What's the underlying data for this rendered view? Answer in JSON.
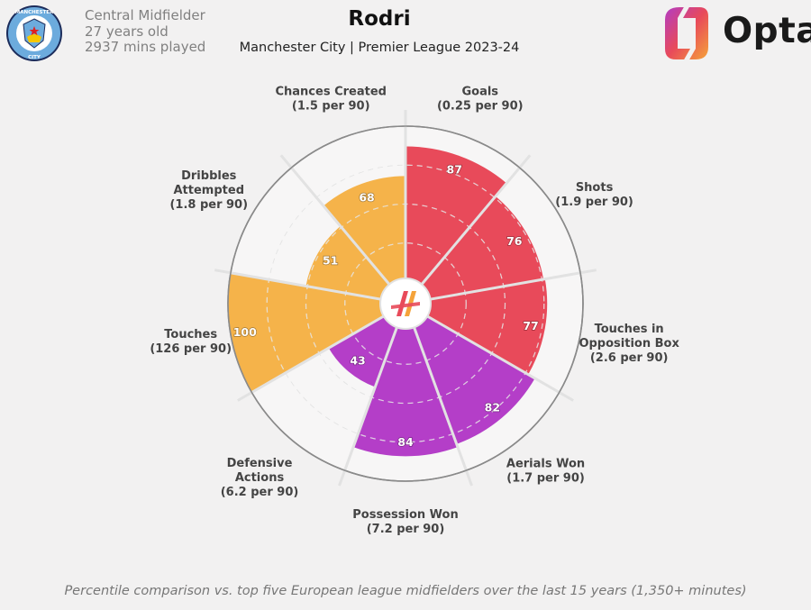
{
  "header": {
    "position": "Central Midfielder",
    "age": "27 years old",
    "minutes": "2937 mins played",
    "title": "Rodri",
    "subtitle": "Manchester City | Premier League 2023-24",
    "logo_text": "Opta",
    "badge_text_top": "MANCHESTER",
    "badge_text_bottom": "CITY"
  },
  "footnote": "Percentile comparison vs. top five European league midfielders over the last 15 years (1,350+ minutes)",
  "colors": {
    "attack": "#e84a5a",
    "possession": "#b43ec8",
    "touch": "#f5b34a",
    "background": "#f2f1f1"
  },
  "chart_data": {
    "type": "pizza",
    "scale_max": 100,
    "metrics": [
      {
        "name": "Goals",
        "per90": "(0.25 per 90)",
        "value": 87,
        "group": "attack"
      },
      {
        "name": "Shots",
        "per90": "(1.9 per 90)",
        "value": 76,
        "group": "attack"
      },
      {
        "name": "Touches in Opposition Box",
        "per90": "(2.6 per 90)",
        "value": 77,
        "group": "attack"
      },
      {
        "name": "Aerials Won",
        "per90": "(1.7 per 90)",
        "value": 82,
        "group": "possession"
      },
      {
        "name": "Possession Won",
        "per90": "(7.2 per 90)",
        "value": 84,
        "group": "possession"
      },
      {
        "name": "Defensive Actions",
        "per90": "(6.2 per 90)",
        "value": 43,
        "group": "possession"
      },
      {
        "name": "Touches",
        "per90": "(126 per 90)",
        "value": 100,
        "group": "touch"
      },
      {
        "name": "Dribbles Attempted",
        "per90": "(1.8 per 90)",
        "value": 51,
        "group": "touch"
      },
      {
        "name": "Chances Created",
        "per90": "(1.5 per 90)",
        "value": 68,
        "group": "touch"
      }
    ],
    "label_lines": [
      [
        "Goals"
      ],
      [
        "Shots"
      ],
      [
        "Touches in",
        "Opposition Box"
      ],
      [
        "Aerials Won"
      ],
      [
        "Possession Won"
      ],
      [
        "Defensive",
        "Actions"
      ],
      [
        "Touches"
      ],
      [
        "Dribbles",
        "Attempted"
      ],
      [
        "Chances Created"
      ]
    ]
  }
}
